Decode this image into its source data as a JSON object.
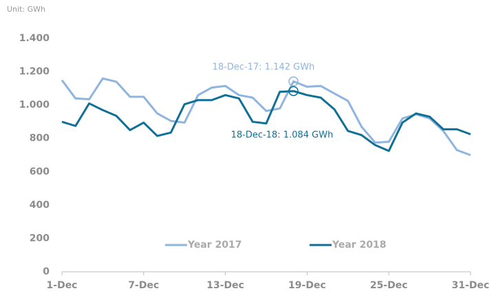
{
  "chart_data": {
    "type": "line",
    "subtitle": "Unit: GWh",
    "categories": [
      "1-Dec",
      null,
      null,
      null,
      null,
      null,
      "7-Dec",
      null,
      null,
      null,
      null,
      null,
      "13-Dec",
      null,
      null,
      null,
      null,
      null,
      "19-Dec",
      null,
      null,
      null,
      null,
      null,
      "25-Dec",
      null,
      null,
      null,
      null,
      null,
      "31-Dec"
    ],
    "series": [
      {
        "name": "Year 2017",
        "color": "#8fb4de",
        "values": [
          1150,
          1040,
          1035,
          1160,
          1140,
          1050,
          1050,
          950,
          905,
          895,
          1060,
          1105,
          1115,
          1060,
          1045,
          965,
          980,
          1142,
          1110,
          1115,
          1070,
          1025,
          870,
          775,
          780,
          920,
          945,
          920,
          845,
          730,
          700
        ]
      },
      {
        "name": "Year 2018",
        "color": "#0f6f96",
        "values": [
          900,
          875,
          1010,
          970,
          935,
          850,
          895,
          815,
          835,
          1005,
          1030,
          1030,
          1060,
          1040,
          900,
          890,
          1080,
          1084,
          1060,
          1045,
          975,
          845,
          820,
          760,
          725,
          895,
          950,
          930,
          855,
          855,
          825
        ]
      }
    ],
    "annotations": [
      "18-Dec-17: 1.142 GWh",
      "18-Dec-18: 1.084 GWh"
    ],
    "ylim": [
      0,
      1400
    ],
    "yticks": [
      0,
      200,
      400,
      600,
      800,
      {
        "value": 1000,
        "label": "1.000"
      },
      {
        "value": 1200,
        "label": "1.200"
      },
      {
        "value": 1400,
        "label": "1.400"
      }
    ],
    "grid": false
  }
}
